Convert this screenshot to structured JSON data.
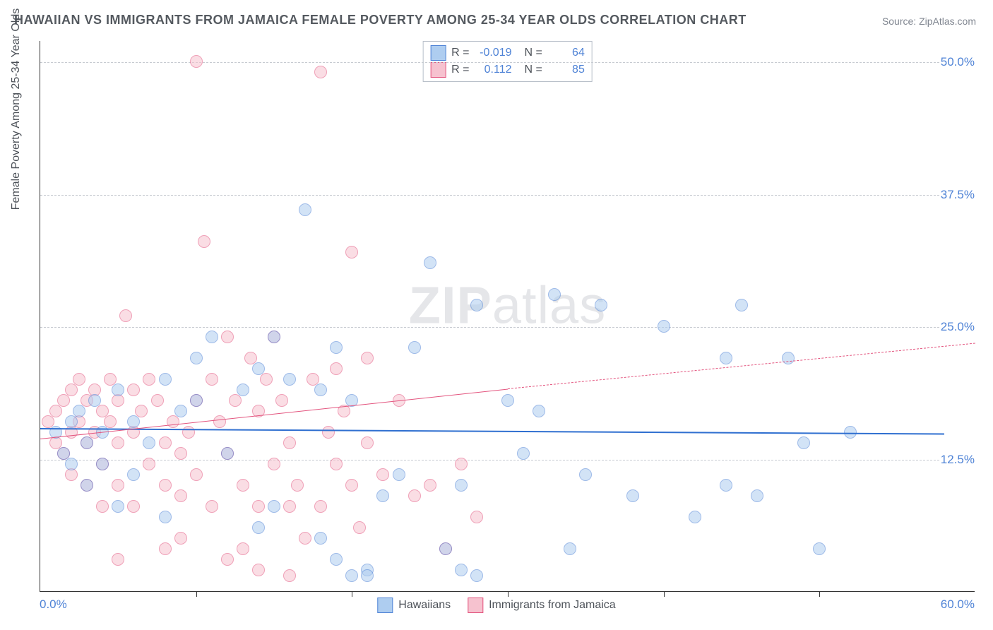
{
  "title": "HAWAIIAN VS IMMIGRANTS FROM JAMAICA FEMALE POVERTY AMONG 25-34 YEAR OLDS CORRELATION CHART",
  "source": "Source: ZipAtlas.com",
  "watermark_a": "ZIP",
  "watermark_b": "atlas",
  "yaxis_title": "Female Poverty Among 25-34 Year Olds",
  "chart": {
    "type": "scatter",
    "xlim": [
      0,
      60
    ],
    "ylim": [
      0,
      52
    ],
    "x_axis_min_label": "0.0%",
    "x_axis_max_label": "60.0%",
    "y_ticks": [
      12.5,
      25.0,
      37.5,
      50.0
    ],
    "y_tick_labels": [
      "12.5%",
      "25.0%",
      "37.5%",
      "50.0%"
    ],
    "x_ticks": [
      10,
      20,
      30,
      40,
      50
    ],
    "grid_color": "#c7cbd1",
    "background_color": "#ffffff",
    "marker_radius": 9,
    "marker_opacity": 0.55
  },
  "series": [
    {
      "name": "Hawaiians",
      "fill": "#aecdf0",
      "stroke": "#4f83d6",
      "r_value": "-0.019",
      "n_value": "64",
      "trend": {
        "y_start": 15.5,
        "y_end": 15.0,
        "x_start": 0,
        "x_end": 58,
        "color": "#2f6fd0",
        "width": 2.2,
        "dashed_from": 58
      },
      "points": [
        [
          1,
          15
        ],
        [
          1.5,
          13
        ],
        [
          2,
          16
        ],
        [
          2,
          12
        ],
        [
          2.5,
          17
        ],
        [
          3,
          14
        ],
        [
          3,
          10
        ],
        [
          3.5,
          18
        ],
        [
          4,
          15
        ],
        [
          4,
          12
        ],
        [
          5,
          19
        ],
        [
          5,
          8
        ],
        [
          6,
          16
        ],
        [
          6,
          11
        ],
        [
          7,
          14
        ],
        [
          8,
          20
        ],
        [
          8,
          7
        ],
        [
          9,
          17
        ],
        [
          10,
          18
        ],
        [
          10,
          22
        ],
        [
          11,
          24
        ],
        [
          12,
          13
        ],
        [
          13,
          19
        ],
        [
          14,
          21
        ],
        [
          14,
          6
        ],
        [
          15,
          24
        ],
        [
          15,
          8
        ],
        [
          16,
          20
        ],
        [
          17,
          36
        ],
        [
          18,
          19
        ],
        [
          18,
          5
        ],
        [
          19,
          23
        ],
        [
          19,
          3
        ],
        [
          20,
          18
        ],
        [
          20,
          1.5
        ],
        [
          21,
          2
        ],
        [
          22,
          9
        ],
        [
          23,
          11
        ],
        [
          24,
          23
        ],
        [
          25,
          31
        ],
        [
          26,
          4
        ],
        [
          27,
          10
        ],
        [
          27,
          2
        ],
        [
          28,
          27
        ],
        [
          30,
          18
        ],
        [
          31,
          13
        ],
        [
          32,
          17
        ],
        [
          33,
          28
        ],
        [
          34,
          4
        ],
        [
          35,
          11
        ],
        [
          36,
          27
        ],
        [
          38,
          9
        ],
        [
          40,
          25
        ],
        [
          42,
          7
        ],
        [
          44,
          22
        ],
        [
          45,
          27
        ],
        [
          46,
          9
        ],
        [
          48,
          22
        ],
        [
          49,
          14
        ],
        [
          50,
          4
        ],
        [
          52,
          15
        ],
        [
          44,
          10
        ],
        [
          28,
          1.5
        ],
        [
          21,
          1.5
        ]
      ]
    },
    {
      "name": "Immigrants from Jamaica",
      "fill": "#f6c2cf",
      "stroke": "#e3547e",
      "r_value": "0.112",
      "n_value": "85",
      "trend": {
        "y_start": 14.5,
        "y_end": 19.2,
        "x_start": 0,
        "x_end": 30,
        "color": "#e3547e",
        "width": 1.8,
        "dashed_from": 30,
        "dashed_y_end": 23.5,
        "dashed_x_end": 60
      },
      "points": [
        [
          0.5,
          16
        ],
        [
          1,
          17
        ],
        [
          1,
          14
        ],
        [
          1.5,
          18
        ],
        [
          1.5,
          13
        ],
        [
          2,
          19
        ],
        [
          2,
          15
        ],
        [
          2,
          11
        ],
        [
          2.5,
          20
        ],
        [
          2.5,
          16
        ],
        [
          3,
          18
        ],
        [
          3,
          14
        ],
        [
          3,
          10
        ],
        [
          3.5,
          19
        ],
        [
          3.5,
          15
        ],
        [
          4,
          17
        ],
        [
          4,
          12
        ],
        [
          4,
          8
        ],
        [
          4.5,
          20
        ],
        [
          4.5,
          16
        ],
        [
          5,
          18
        ],
        [
          5,
          14
        ],
        [
          5,
          10
        ],
        [
          5.5,
          26
        ],
        [
          6,
          19
        ],
        [
          6,
          15
        ],
        [
          6,
          8
        ],
        [
          6.5,
          17
        ],
        [
          7,
          20
        ],
        [
          7,
          12
        ],
        [
          7.5,
          18
        ],
        [
          8,
          14
        ],
        [
          8,
          10
        ],
        [
          8.5,
          16
        ],
        [
          9,
          13
        ],
        [
          9,
          9
        ],
        [
          9.5,
          15
        ],
        [
          10,
          18
        ],
        [
          10,
          11
        ],
        [
          10,
          50
        ],
        [
          10.5,
          33
        ],
        [
          11,
          20
        ],
        [
          11,
          8
        ],
        [
          11.5,
          16
        ],
        [
          12,
          24
        ],
        [
          12,
          13
        ],
        [
          12.5,
          18
        ],
        [
          13,
          10
        ],
        [
          13,
          4
        ],
        [
          13.5,
          22
        ],
        [
          14,
          17
        ],
        [
          14,
          8
        ],
        [
          14.5,
          20
        ],
        [
          15,
          12
        ],
        [
          15,
          24
        ],
        [
          15.5,
          18
        ],
        [
          16,
          14
        ],
        [
          16,
          8
        ],
        [
          16.5,
          10
        ],
        [
          17,
          5
        ],
        [
          17.5,
          20
        ],
        [
          18,
          8
        ],
        [
          18,
          49
        ],
        [
          18.5,
          15
        ],
        [
          19,
          21
        ],
        [
          19,
          12
        ],
        [
          19.5,
          17
        ],
        [
          20,
          32
        ],
        [
          20,
          10
        ],
        [
          20.5,
          6
        ],
        [
          21,
          14
        ],
        [
          21,
          22
        ],
        [
          22,
          11
        ],
        [
          23,
          18
        ],
        [
          24,
          9
        ],
        [
          25,
          10
        ],
        [
          26,
          4
        ],
        [
          27,
          12
        ],
        [
          28,
          7
        ],
        [
          5,
          3
        ],
        [
          8,
          4
        ],
        [
          12,
          3
        ],
        [
          14,
          2
        ],
        [
          16,
          1.5
        ],
        [
          9,
          5
        ]
      ]
    }
  ],
  "legend": {
    "series1_label": "Hawaiians",
    "series2_label": "Immigrants from Jamaica"
  },
  "stats_legend": {
    "r_label": "R =",
    "n_label": "N ="
  }
}
